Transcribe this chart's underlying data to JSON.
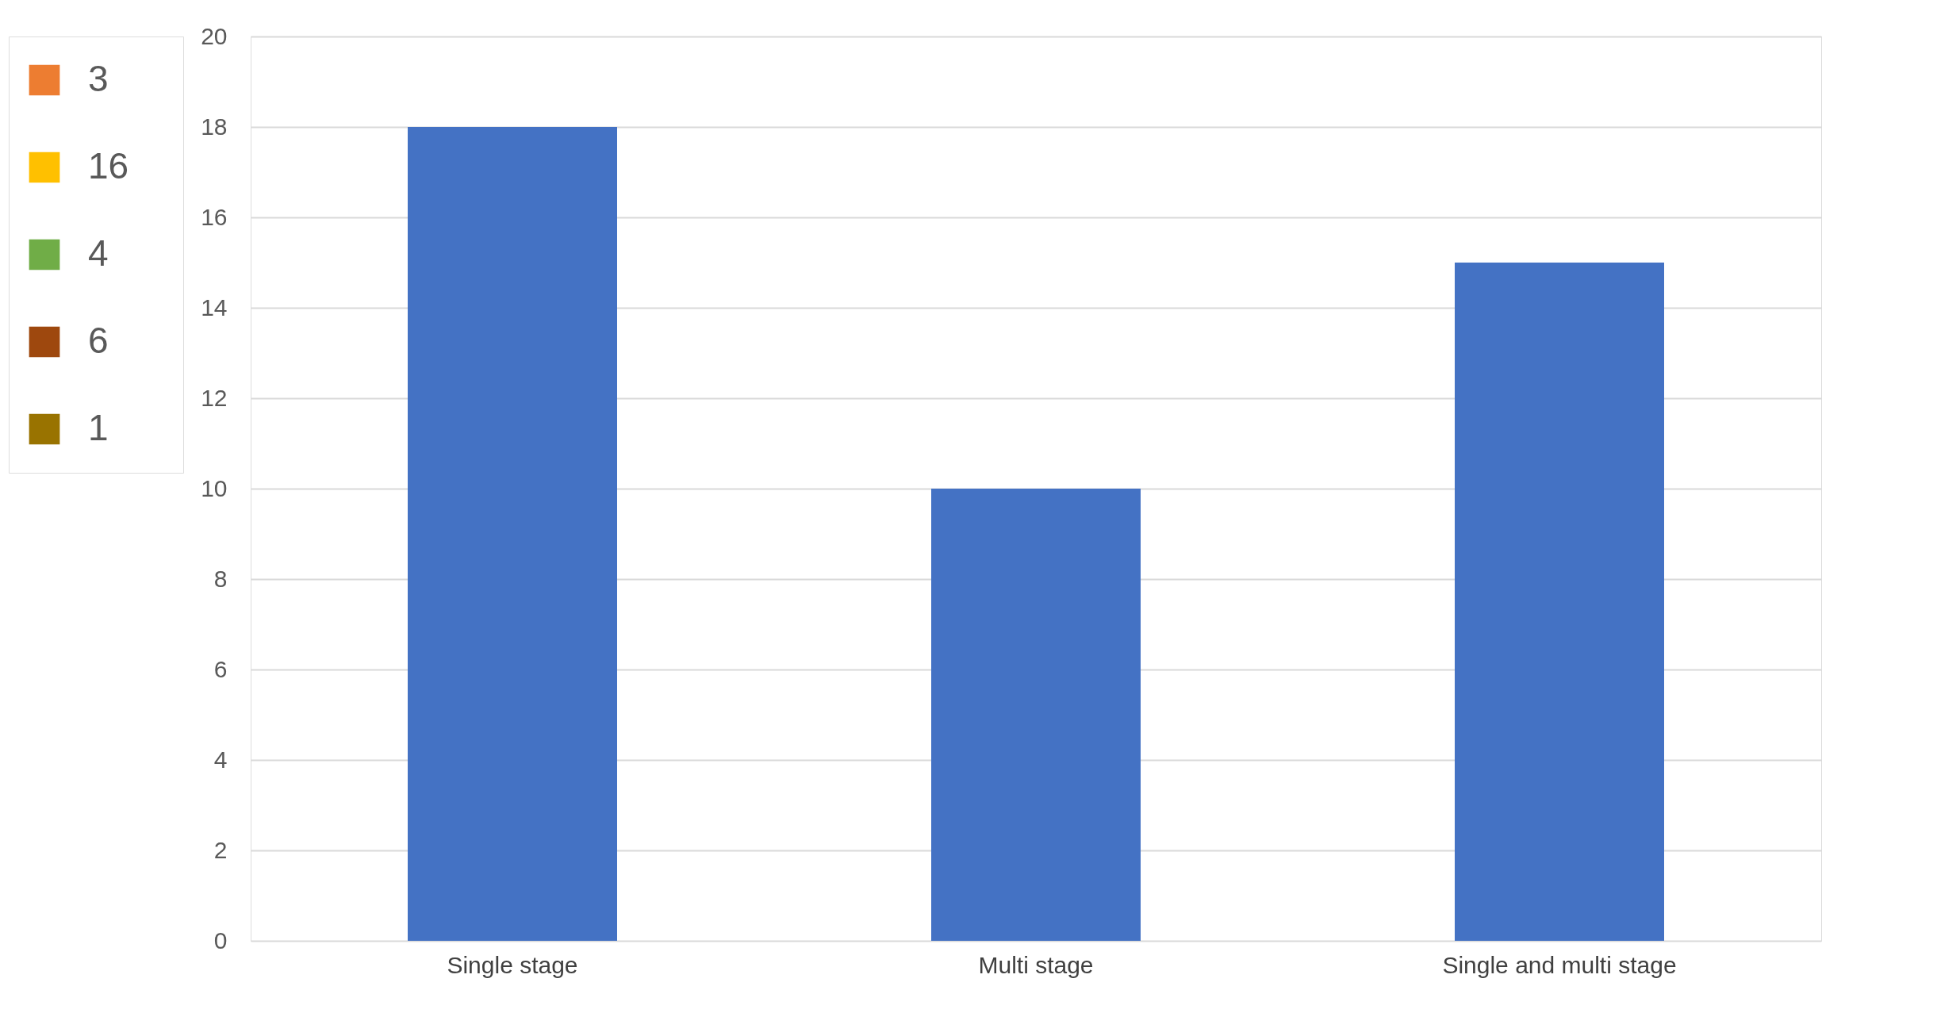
{
  "chart_data": {
    "type": "bar",
    "categories": [
      "Single stage",
      "Multi stage",
      "Single and multi stage"
    ],
    "series": [
      {
        "color": "#4472c4",
        "values": [
          18,
          10,
          15
        ]
      },
      {
        "name": "3",
        "color": "#ed7d31",
        "values": [
          null,
          null,
          null
        ]
      },
      {
        "name": "16",
        "color": "#ffc000",
        "values": [
          null,
          null,
          null
        ]
      },
      {
        "name": "4",
        "color": "#70ad47",
        "values": [
          null,
          null,
          null
        ]
      },
      {
        "name": "6",
        "color": "#9e480e",
        "values": [
          null,
          null,
          null
        ]
      },
      {
        "name": "1",
        "color": "#997300",
        "values": [
          null,
          null,
          null
        ]
      }
    ],
    "ylim": [
      0,
      20
    ],
    "yticks": [
      0,
      2,
      4,
      6,
      8,
      10,
      12,
      14,
      16,
      18,
      20
    ],
    "grid": "y",
    "legend": "left"
  }
}
